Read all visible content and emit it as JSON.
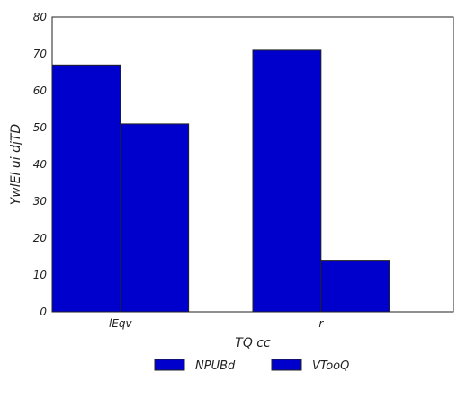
{
  "chart_data": {
    "type": "bar",
    "categories": [
      "lEqv",
      "r"
    ],
    "series": [
      {
        "name": "NPUBd",
        "values": [
          67,
          71
        ],
        "color": "#0000cc"
      },
      {
        "name": "VTooQ",
        "values": [
          51,
          14
        ],
        "color": "#0000cc"
      }
    ],
    "xlabel": "TQ cc",
    "ylabel": "YwlEl ui djTD",
    "ylim": [
      0,
      80
    ],
    "yticks": [
      0,
      10,
      20,
      30,
      40,
      50,
      60,
      70,
      80
    ],
    "grid": false,
    "legend_position": "bottom-center"
  }
}
